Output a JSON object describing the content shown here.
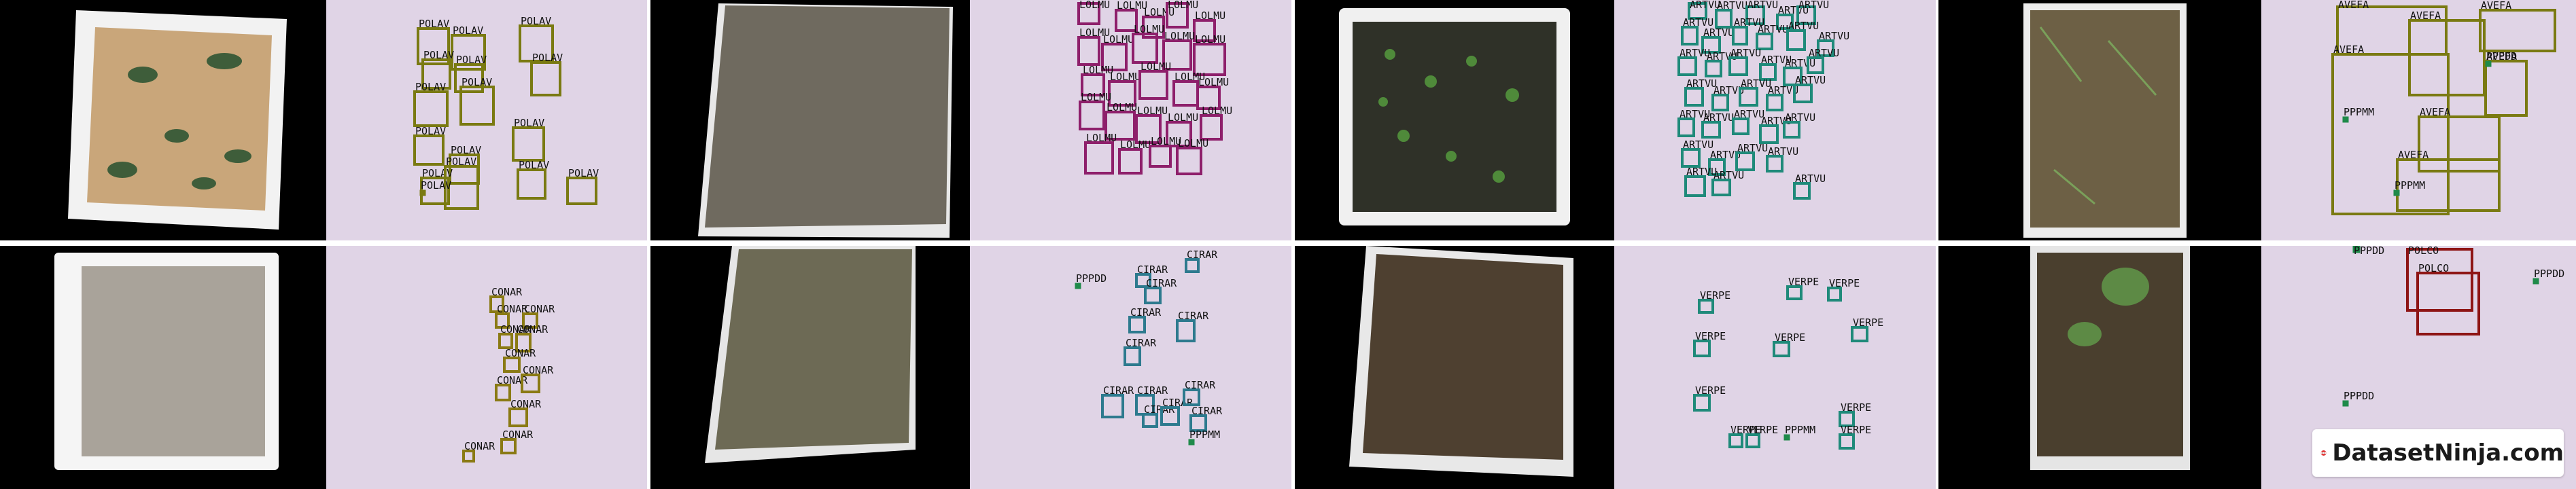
{
  "colors": {
    "bg_annotation": "#e0d4e6",
    "bg_photo": "#000000",
    "POLAV": "#7a7a12",
    "LOLMU": "#8e1f6b",
    "ARTVU": "#1f8a7a",
    "AVEFA": "#7a7a12",
    "CONAR": "#8a7a14",
    "CIRAR": "#2d7a8e",
    "VERPE": "#1f8a7a",
    "POLCO": "#8e1515",
    "PPPDD": "#1f8a4a",
    "PPPMM": "#1f8a4a"
  },
  "watermark": {
    "brand": "DatasetNinja.com",
    "icon": "ninja-face-icon"
  },
  "panels": [
    {
      "cls": "POLAV",
      "boxes": [
        {
          "c": "POLAV",
          "b": [
            135,
            42,
            45,
            52
          ]
        },
        {
          "c": "POLAV",
          "b": [
            185,
            52,
            48,
            50
          ]
        },
        {
          "c": "POLAV",
          "b": [
            285,
            38,
            48,
            52
          ]
        },
        {
          "c": "POLAV",
          "b": [
            142,
            88,
            40,
            42
          ]
        },
        {
          "c": "POLAV",
          "b": [
            190,
            95,
            40,
            40
          ]
        },
        {
          "c": "POLAV",
          "b": [
            302,
            92,
            42,
            48
          ]
        },
        {
          "c": "POLAV",
          "b": [
            130,
            135,
            48,
            50
          ]
        },
        {
          "c": "POLAV",
          "b": [
            198,
            128,
            48,
            55
          ]
        },
        {
          "c": "POLAV",
          "b": [
            275,
            188,
            45,
            48
          ]
        },
        {
          "c": "POLAV",
          "b": [
            130,
            200,
            42,
            42
          ]
        },
        {
          "c": "POLAV",
          "b": [
            182,
            228,
            42,
            42
          ]
        },
        {
          "c": "POLAV",
          "b": [
            282,
            250,
            40,
            42
          ]
        },
        {
          "c": "POLAV",
          "b": [
            140,
            262,
            40,
            38
          ]
        },
        {
          "c": "POLAV",
          "b": [
            175,
            245,
            48,
            62
          ]
        },
        {
          "c": "POLAV",
          "b": [
            355,
            262,
            42,
            38
          ]
        },
        {
          "c": "POLAV",
          "b": [
            138,
            280,
            8,
            8
          ]
        }
      ]
    },
    {
      "cls": "LOLMU",
      "boxes": [
        {
          "c": "LOLMU",
          "b": [
            160,
            5,
            30,
            30
          ]
        },
        {
          "c": "LOLMU",
          "b": [
            215,
            15,
            30,
            30
          ]
        },
        {
          "c": "LOLMU",
          "b": [
            255,
            25,
            30,
            30
          ]
        },
        {
          "c": "LOLMU",
          "b": [
            290,
            5,
            30,
            35
          ]
        },
        {
          "c": "LOLMU",
          "b": [
            330,
            30,
            30,
            30
          ]
        },
        {
          "c": "LOLMU",
          "b": [
            160,
            55,
            30,
            40
          ]
        },
        {
          "c": "LOLMU",
          "b": [
            195,
            65,
            35,
            38
          ]
        },
        {
          "c": "LOLMU",
          "b": [
            240,
            50,
            35,
            42
          ]
        },
        {
          "c": "LOLMU",
          "b": [
            285,
            60,
            40,
            42
          ]
        },
        {
          "c": "LOLMU",
          "b": [
            330,
            65,
            45,
            45
          ]
        },
        {
          "c": "LOLMU",
          "b": [
            165,
            110,
            32,
            30
          ]
        },
        {
          "c": "LOLMU",
          "b": [
            205,
            120,
            38,
            35
          ]
        },
        {
          "c": "LOLMU",
          "b": [
            250,
            105,
            40,
            40
          ]
        },
        {
          "c": "LOLMU",
          "b": [
            300,
            120,
            35,
            35
          ]
        },
        {
          "c": "LOLMU",
          "b": [
            335,
            128,
            32,
            32
          ]
        },
        {
          "c": "LOLMU",
          "b": [
            162,
            150,
            35,
            40
          ]
        },
        {
          "c": "LOLMU",
          "b": [
            200,
            165,
            42,
            40
          ]
        },
        {
          "c": "LOLMU",
          "b": [
            245,
            170,
            35,
            40
          ]
        },
        {
          "c": "LOLMU",
          "b": [
            290,
            180,
            35,
            35
          ]
        },
        {
          "c": "LOLMU",
          "b": [
            340,
            170,
            30,
            35
          ]
        },
        {
          "c": "LOLMU",
          "b": [
            170,
            210,
            40,
            45
          ]
        },
        {
          "c": "LOLMU",
          "b": [
            220,
            220,
            32,
            35
          ]
        },
        {
          "c": "LOLMU",
          "b": [
            265,
            215,
            30,
            30
          ]
        },
        {
          "c": "LOLMU",
          "b": [
            305,
            218,
            35,
            38
          ]
        }
      ]
    },
    {
      "cls": "ARTVU",
      "boxes": [
        {
          "c": "ARTVU",
          "b": [
            110,
            5,
            25,
            22
          ]
        },
        {
          "c": "ARTVU",
          "b": [
            150,
            15,
            22,
            25
          ]
        },
        {
          "c": "ARTVU",
          "b": [
            195,
            10,
            25,
            25
          ]
        },
        {
          "c": "ARTVU",
          "b": [
            240,
            22,
            22,
            20
          ]
        },
        {
          "c": "ARTVU",
          "b": [
            270,
            10,
            25,
            25
          ]
        },
        {
          "c": "ARTVU",
          "b": [
            100,
            40,
            22,
            25
          ]
        },
        {
          "c": "ARTVU",
          "b": [
            130,
            55,
            25,
            22
          ]
        },
        {
          "c": "ARTVU",
          "b": [
            175,
            40,
            20,
            25
          ]
        },
        {
          "c": "ARTVU",
          "b": [
            210,
            50,
            22,
            22
          ]
        },
        {
          "c": "ARTVU",
          "b": [
            255,
            45,
            25,
            28
          ]
        },
        {
          "c": "ARTVU",
          "b": [
            300,
            60,
            22,
            22
          ]
        },
        {
          "c": "ARTVU",
          "b": [
            95,
            85,
            25,
            25
          ]
        },
        {
          "c": "ARTVU",
          "b": [
            135,
            90,
            22,
            22
          ]
        },
        {
          "c": "ARTVU",
          "b": [
            170,
            85,
            25,
            25
          ]
        },
        {
          "c": "ARTVU",
          "b": [
            215,
            95,
            22,
            22
          ]
        },
        {
          "c": "ARTVU",
          "b": [
            250,
            100,
            25,
            25
          ]
        },
        {
          "c": "ARTVU",
          "b": [
            285,
            85,
            22,
            22
          ]
        },
        {
          "c": "ARTVU",
          "b": [
            105,
            130,
            25,
            25
          ]
        },
        {
          "c": "ARTVU",
          "b": [
            145,
            140,
            22,
            22
          ]
        },
        {
          "c": "ARTVU",
          "b": [
            185,
            130,
            25,
            25
          ]
        },
        {
          "c": "ARTVU",
          "b": [
            225,
            140,
            22,
            22
          ]
        },
        {
          "c": "ARTVU",
          "b": [
            265,
            125,
            25,
            25
          ]
        },
        {
          "c": "ARTVU",
          "b": [
            95,
            175,
            22,
            25
          ]
        },
        {
          "c": "ARTVU",
          "b": [
            130,
            180,
            25,
            22
          ]
        },
        {
          "c": "ARTVU",
          "b": [
            175,
            175,
            22,
            22
          ]
        },
        {
          "c": "ARTVU",
          "b": [
            215,
            185,
            25,
            25
          ]
        },
        {
          "c": "ARTVU",
          "b": [
            250,
            180,
            22,
            22
          ]
        },
        {
          "c": "ARTVU",
          "b": [
            100,
            220,
            25,
            25
          ]
        },
        {
          "c": "ARTVU",
          "b": [
            140,
            235,
            22,
            22
          ]
        },
        {
          "c": "ARTVU",
          "b": [
            180,
            225,
            25,
            25
          ]
        },
        {
          "c": "ARTVU",
          "b": [
            225,
            230,
            22,
            22
          ]
        },
        {
          "c": "ARTVU",
          "b": [
            105,
            260,
            28,
            28
          ]
        },
        {
          "c": "ARTVU",
          "b": [
            145,
            265,
            25,
            22
          ]
        },
        {
          "c": "ARTVU",
          "b": [
            265,
            270,
            22,
            22
          ]
        }
      ]
    },
    {
      "cls": "AVEFA",
      "boxes": [
        {
          "c": "AVEFA",
          "b": [
            112,
            10,
            160,
            70
          ]
        },
        {
          "c": "AVEFA",
          "b": [
            218,
            30,
            110,
            110
          ]
        },
        {
          "c": "AVEFA",
          "b": [
            322,
            15,
            110,
            60
          ]
        },
        {
          "c": "AVEFA",
          "b": [
            105,
            80,
            170,
            235
          ]
        },
        {
          "c": "AVEFA",
          "b": [
            232,
            172,
            118,
            80
          ]
        },
        {
          "c": "AVEFA",
          "b": [
            200,
            235,
            150,
            75
          ]
        },
        {
          "c": "AVEFA",
          "b": [
            330,
            90,
            60,
            80
          ]
        },
        {
          "c": "PPPMM",
          "b": [
            120,
            172,
            8,
            8
          ]
        },
        {
          "c": "PPPDD",
          "b": [
            330,
            90,
            8,
            8
          ]
        },
        {
          "c": "PPPMM",
          "b": [
            195,
            280,
            8,
            8
          ]
        }
      ]
    },
    {
      "cls": "CONAR",
      "boxes": [
        {
          "c": "CONAR",
          "b": [
            242,
            75,
            18,
            22
          ]
        },
        {
          "c": "CONAR",
          "b": [
            250,
            100,
            18,
            20
          ]
        },
        {
          "c": "CONAR",
          "b": [
            290,
            100,
            20,
            20
          ]
        },
        {
          "c": "CONAR",
          "b": [
            255,
            130,
            18,
            20
          ]
        },
        {
          "c": "CONAR",
          "b": [
            280,
            130,
            20,
            25
          ]
        },
        {
          "c": "CONAR",
          "b": [
            262,
            165,
            22,
            20
          ]
        },
        {
          "c": "CONAR",
          "b": [
            250,
            205,
            20,
            22
          ]
        },
        {
          "c": "CONAR",
          "b": [
            288,
            190,
            25,
            25
          ]
        },
        {
          "c": "CONAR",
          "b": [
            258,
            285,
            20,
            20
          ]
        },
        {
          "c": "CONAR",
          "b": [
            202,
            302,
            15,
            15
          ]
        },
        {
          "c": "CONAR",
          "b": [
            270,
            240,
            25,
            25
          ]
        }
      ]
    },
    {
      "cls": "CIRAR",
      "boxes": [
        {
          "c": "CIRAR",
          "b": [
            245,
            42,
            20,
            18
          ]
        },
        {
          "c": "CIRAR",
          "b": [
            318,
            20,
            18,
            18
          ]
        },
        {
          "c": "CIRAR",
          "b": [
            258,
            62,
            22,
            22
          ]
        },
        {
          "c": "CIRAR",
          "b": [
            235,
            105,
            22,
            22
          ]
        },
        {
          "c": "CIRAR",
          "b": [
            228,
            150,
            22,
            25
          ]
        },
        {
          "c": "CIRAR",
          "b": [
            305,
            110,
            25,
            30
          ]
        },
        {
          "c": "CIRAR",
          "b": [
            195,
            220,
            30,
            32
          ]
        },
        {
          "c": "CIRAR",
          "b": [
            245,
            220,
            25,
            28
          ]
        },
        {
          "c": "CIRAR",
          "b": [
            255,
            248,
            20,
            18
          ]
        },
        {
          "c": "CIRAR",
          "b": [
            282,
            238,
            25,
            25
          ]
        },
        {
          "c": "CIRAR",
          "b": [
            315,
            212,
            22,
            22
          ]
        },
        {
          "c": "CIRAR",
          "b": [
            325,
            250,
            22,
            22
          ]
        },
        {
          "c": "PPPDD",
          "b": [
            155,
            55,
            8,
            8
          ]
        },
        {
          "c": "PPPMM",
          "b": [
            322,
            285,
            8,
            8
          ]
        }
      ]
    },
    {
      "cls": "VERPE",
      "boxes": [
        {
          "c": "VERPE",
          "b": [
            255,
            60,
            20,
            18
          ]
        },
        {
          "c": "VERPE",
          "b": [
            315,
            62,
            18,
            18
          ]
        },
        {
          "c": "VERPE",
          "b": [
            125,
            80,
            20,
            18
          ]
        },
        {
          "c": "VERPE",
          "b": [
            350,
            120,
            22,
            20
          ]
        },
        {
          "c": "VERPE",
          "b": [
            118,
            140,
            22,
            22
          ]
        },
        {
          "c": "VERPE",
          "b": [
            235,
            142,
            22,
            20
          ]
        },
        {
          "c": "VERPE",
          "b": [
            118,
            220,
            22,
            22
          ]
        },
        {
          "c": "VERPE",
          "b": [
            332,
            245,
            20,
            20
          ]
        },
        {
          "c": "VERPE",
          "b": [
            170,
            278,
            18,
            18
          ]
        },
        {
          "c": "VERPE",
          "b": [
            195,
            278,
            18,
            18
          ]
        },
        {
          "c": "VERPE",
          "b": [
            332,
            278,
            20,
            20
          ]
        },
        {
          "c": "PPPMM",
          "b": [
            250,
            278,
            8,
            8
          ]
        }
      ]
    },
    {
      "cls": "POLCO",
      "boxes": [
        {
          "c": "POLCO",
          "b": [
            215,
            5,
            95,
            90
          ]
        },
        {
          "c": "POLCO",
          "b": [
            230,
            40,
            90,
            90
          ]
        },
        {
          "c": "PPPDD",
          "b": [
            135,
            0,
            10,
            10
          ]
        },
        {
          "c": "PPPDD",
          "b": [
            400,
            48,
            8,
            8
          ]
        },
        {
          "c": "PPPDD",
          "b": [
            120,
            228,
            8,
            8
          ]
        }
      ]
    }
  ],
  "labels": [
    {
      "t": "POLAV",
      "p": [
        135,
        40
      ]
    },
    {
      "t": "POLAV",
      "p": [
        188,
        48
      ]
    },
    {
      "t": "POLAV",
      "p": [
        292,
        36
      ]
    },
    {
      "t": "POLAV",
      "p": [
        144,
        86
      ]
    },
    {
      "t": "LAV",
      "p": [
        193,
        92
      ]
    },
    {
      "t": "POLAV",
      "p": [
        302,
        90
      ]
    },
    {
      "t": "POLAV",
      "p": [
        132,
        133
      ]
    },
    {
      "t": "POLAV",
      "p": [
        200,
        126
      ]
    },
    {
      "t": "POLAV",
      "p": [
        277,
        186
      ]
    },
    {
      "t": "POLAV",
      "p": [
        134,
        198
      ]
    },
    {
      "t": "POLAV",
      "p": [
        182,
        225
      ]
    },
    {
      "t": "POLAV",
      "p": [
        284,
        248
      ]
    },
    {
      "t": "POLAV",
      "p": [
        142,
        260
      ]
    },
    {
      "t": "POLAV",
      "p": [
        355,
        260
      ]
    }
  ]
}
